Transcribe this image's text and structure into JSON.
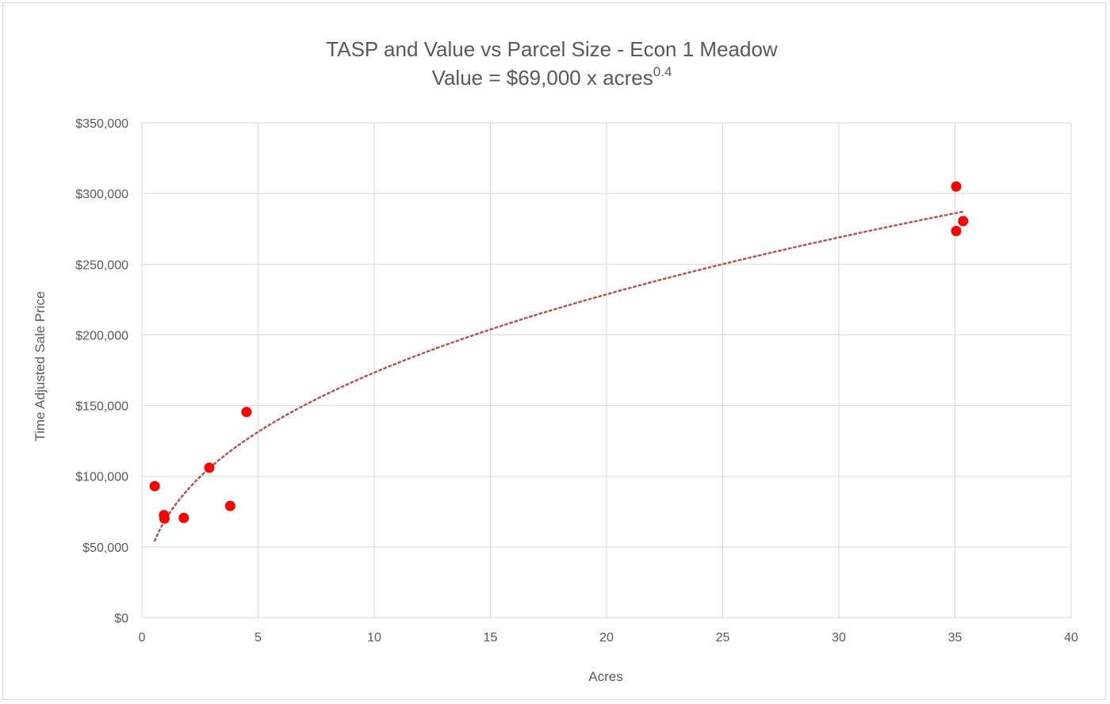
{
  "chart_data": {
    "type": "scatter",
    "title": "TASP and Value vs Parcel Size - Econ 1 Meadow",
    "subtitle": {
      "prefix": "Value = $69,000 x acres",
      "exponent": "0.4"
    },
    "xlabel": "Acres",
    "ylabel": "Time Adjusted Sale Price",
    "xlim": [
      0,
      40
    ],
    "ylim": [
      0,
      350000
    ],
    "x_ticks": [
      0,
      5,
      10,
      15,
      20,
      25,
      30,
      35,
      40
    ],
    "y_ticks": [
      0,
      50000,
      100000,
      150000,
      200000,
      250000,
      300000,
      350000
    ],
    "x_tick_labels": [
      "0",
      "5",
      "10",
      "15",
      "20",
      "25",
      "30",
      "35",
      "40"
    ],
    "y_tick_labels": [
      "$0",
      "$50,000",
      "$100,000",
      "$150,000",
      "$200,000",
      "$250,000",
      "$300,000",
      "$350,000"
    ],
    "grid": true,
    "marker_color": "#ff0000",
    "trendline_color": "#c0504d",
    "points": [
      {
        "x": 0.55,
        "y": 93000
      },
      {
        "x": 0.95,
        "y": 72500
      },
      {
        "x": 0.97,
        "y": 70000
      },
      {
        "x": 1.8,
        "y": 70500
      },
      {
        "x": 2.9,
        "y": 106000
      },
      {
        "x": 3.8,
        "y": 79000
      },
      {
        "x": 4.5,
        "y": 145500
      },
      {
        "x": 35.05,
        "y": 305000
      },
      {
        "x": 35.05,
        "y": 273500
      },
      {
        "x": 35.35,
        "y": 280500
      }
    ],
    "trendline": {
      "type": "power",
      "coefficient": 69000,
      "exponent": 0.4,
      "x_range": [
        0.55,
        35.35
      ]
    }
  }
}
